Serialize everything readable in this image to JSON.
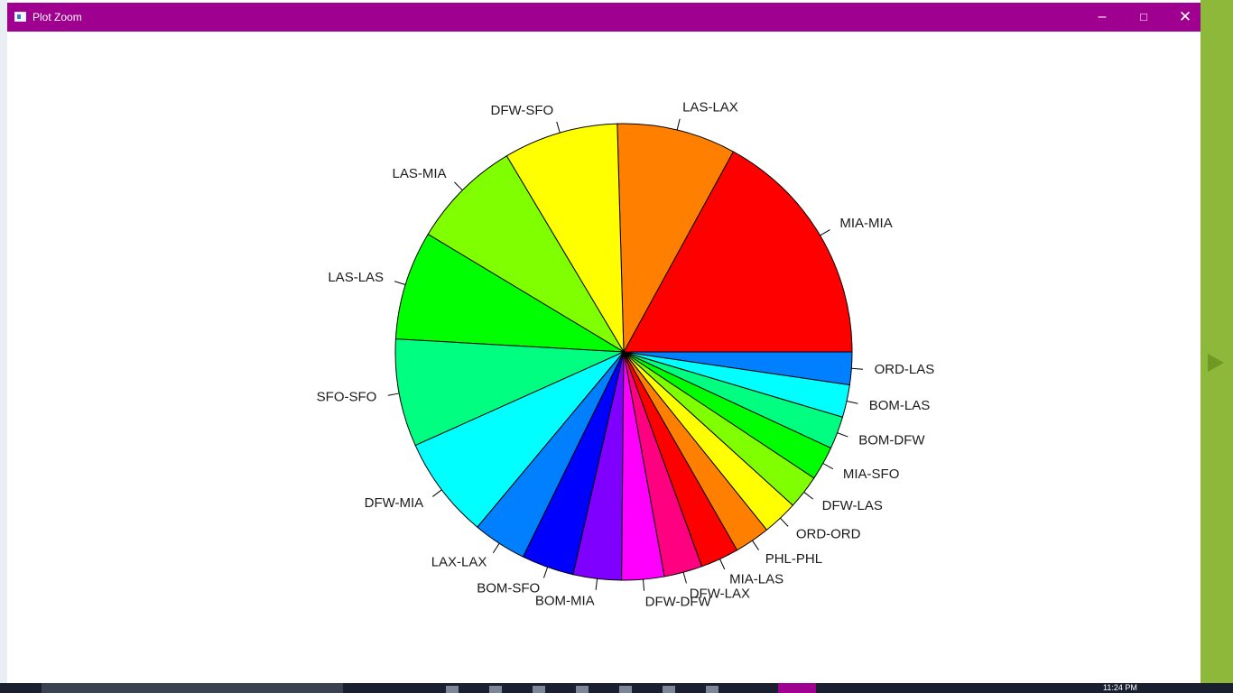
{
  "window": {
    "title": "Plot Zoom",
    "minimize_icon": "minimize-icon",
    "maximize_icon": "maximize-icon",
    "close_icon": "close-icon",
    "titlebar_color": "#a0008f"
  },
  "taskbar": {
    "clock": "11:24 PM"
  },
  "chart_data": {
    "type": "pie",
    "title": "",
    "start_angle_deg": 0,
    "direction": "counterclockwise",
    "slices": [
      {
        "label": "MIA-MIA",
        "value": 17.0,
        "color": "#FF0000"
      },
      {
        "label": "LAS-LAX",
        "value": 8.4,
        "color": "#FF8000"
      },
      {
        "label": "DFW-SFO",
        "value": 8.1,
        "color": "#FFFF00"
      },
      {
        "label": "LAS-MIA",
        "value": 7.8,
        "color": "#80FF00"
      },
      {
        "label": "LAS-LAS",
        "value": 7.7,
        "color": "#00FF00"
      },
      {
        "label": "SFO-SFO",
        "value": 7.6,
        "color": "#00FF80"
      },
      {
        "label": "DFW-MIA",
        "value": 7.2,
        "color": "#00FFFF"
      },
      {
        "label": "LAX-LAX",
        "value": 3.8,
        "color": "#0080FF"
      },
      {
        "label": "BOM-SFO",
        "value": 3.7,
        "color": "#0000FF"
      },
      {
        "label": "BOM-MIA",
        "value": 3.4,
        "color": "#8000FF"
      },
      {
        "label": "DFW-DFW",
        "value": 3.0,
        "color": "#FF00FF"
      },
      {
        "label": "DFW-LAX",
        "value": 2.7,
        "color": "#FF0080"
      },
      {
        "label": "MIA-LAS",
        "value": 2.7,
        "color": "#FF0000"
      },
      {
        "label": "PHL-PHL",
        "value": 2.5,
        "color": "#FF8000"
      },
      {
        "label": "ORD-ORD",
        "value": 2.5,
        "color": "#FFFF00"
      },
      {
        "label": "DFW-LAS",
        "value": 2.4,
        "color": "#80FF00"
      },
      {
        "label": "MIA-SFO",
        "value": 2.4,
        "color": "#00FF00"
      },
      {
        "label": "BOM-DFW",
        "value": 2.3,
        "color": "#00FF80"
      },
      {
        "label": "BOM-LAS",
        "value": 2.3,
        "color": "#00FFFF"
      },
      {
        "label": "ORD-LAS",
        "value": 2.3,
        "color": "#0080FF"
      }
    ]
  }
}
